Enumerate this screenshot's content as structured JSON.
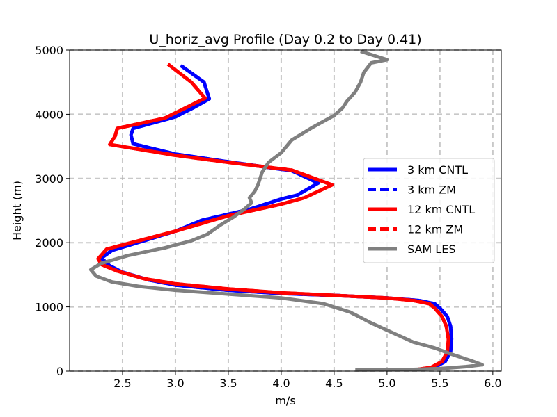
{
  "chart_data": {
    "type": "line",
    "title": "U_horiz_avg Profile (Day 0.2 to Day 0.41)",
    "xlabel": "m/s",
    "ylabel": "Height (m)",
    "xlim": [
      2.0,
      6.08
    ],
    "ylim": [
      0,
      5000
    ],
    "xticks": [
      2.5,
      3.0,
      3.5,
      4.0,
      4.5,
      5.0,
      5.5,
      6.0
    ],
    "xtick_labels": [
      "2.5",
      "3.0",
      "3.5",
      "4.0",
      "4.5",
      "5.0",
      "5.5",
      "6.0"
    ],
    "yticks": [
      0,
      1000,
      2000,
      3000,
      4000,
      5000
    ],
    "ytick_labels": [
      "0",
      "1000",
      "2000",
      "3000",
      "4000",
      "5000"
    ],
    "grid": true,
    "legend_position": "center-right",
    "series": [
      {
        "name": "3 km CNTL",
        "color": "#0000ff",
        "dash": "solid",
        "points": [
          [
            5.3,
            25
          ],
          [
            5.45,
            60
          ],
          [
            5.55,
            150
          ],
          [
            5.6,
            300
          ],
          [
            5.61,
            500
          ],
          [
            5.6,
            700
          ],
          [
            5.57,
            850
          ],
          [
            5.5,
            980
          ],
          [
            5.45,
            1050
          ],
          [
            5.3,
            1100
          ],
          [
            5.0,
            1140
          ],
          [
            4.5,
            1180
          ],
          [
            4.0,
            1210
          ],
          [
            3.5,
            1260
          ],
          [
            3.0,
            1340
          ],
          [
            2.75,
            1420
          ],
          [
            2.5,
            1540
          ],
          [
            2.38,
            1640
          ],
          [
            2.3,
            1760
          ],
          [
            2.4,
            1880
          ],
          [
            3.0,
            2180
          ],
          [
            3.25,
            2350
          ],
          [
            3.7,
            2520
          ],
          [
            4.0,
            2680
          ],
          [
            4.15,
            2740
          ],
          [
            4.35,
            2930
          ],
          [
            4.1,
            3120
          ],
          [
            3.5,
            3260
          ],
          [
            3.0,
            3380
          ],
          [
            2.6,
            3540
          ],
          [
            2.58,
            3680
          ],
          [
            2.6,
            3780
          ],
          [
            3.0,
            3960
          ],
          [
            3.18,
            4110
          ],
          [
            3.32,
            4240
          ],
          [
            3.27,
            4500
          ],
          [
            3.05,
            4760
          ]
        ]
      },
      {
        "name": "3 km ZM",
        "color": "#0000ff",
        "dash": "dashed",
        "points": [
          [
            5.3,
            25
          ],
          [
            5.45,
            60
          ],
          [
            5.55,
            150
          ],
          [
            5.6,
            300
          ],
          [
            5.61,
            500
          ],
          [
            5.6,
            700
          ],
          [
            5.57,
            850
          ],
          [
            5.5,
            980
          ],
          [
            5.45,
            1050
          ],
          [
            5.3,
            1100
          ],
          [
            5.0,
            1140
          ],
          [
            4.5,
            1180
          ],
          [
            4.0,
            1210
          ],
          [
            3.5,
            1260
          ],
          [
            3.0,
            1340
          ],
          [
            2.75,
            1420
          ],
          [
            2.5,
            1540
          ],
          [
            2.38,
            1640
          ],
          [
            2.3,
            1760
          ],
          [
            2.4,
            1880
          ],
          [
            3.0,
            2180
          ],
          [
            3.25,
            2350
          ],
          [
            3.7,
            2520
          ],
          [
            4.0,
            2680
          ],
          [
            4.15,
            2740
          ],
          [
            4.35,
            2930
          ],
          [
            4.1,
            3120
          ],
          [
            3.5,
            3260
          ],
          [
            3.0,
            3380
          ],
          [
            2.6,
            3540
          ],
          [
            2.58,
            3680
          ],
          [
            2.6,
            3780
          ],
          [
            3.0,
            3960
          ],
          [
            3.18,
            4110
          ],
          [
            3.32,
            4240
          ],
          [
            3.27,
            4500
          ],
          [
            3.05,
            4760
          ]
        ]
      },
      {
        "name": "12 km CNTL",
        "color": "#ff0000",
        "dash": "solid",
        "points": [
          [
            5.28,
            25
          ],
          [
            5.42,
            60
          ],
          [
            5.52,
            150
          ],
          [
            5.57,
            300
          ],
          [
            5.58,
            500
          ],
          [
            5.56,
            700
          ],
          [
            5.52,
            850
          ],
          [
            5.45,
            980
          ],
          [
            5.4,
            1050
          ],
          [
            5.25,
            1100
          ],
          [
            5.0,
            1140
          ],
          [
            4.5,
            1180
          ],
          [
            4.0,
            1220
          ],
          [
            3.5,
            1280
          ],
          [
            3.0,
            1360
          ],
          [
            2.7,
            1440
          ],
          [
            2.45,
            1560
          ],
          [
            2.3,
            1660
          ],
          [
            2.27,
            1750
          ],
          [
            2.35,
            1900
          ],
          [
            3.0,
            2180
          ],
          [
            3.5,
            2420
          ],
          [
            4.0,
            2600
          ],
          [
            4.22,
            2700
          ],
          [
            4.48,
            2900
          ],
          [
            4.1,
            3130
          ],
          [
            3.5,
            3250
          ],
          [
            3.0,
            3360
          ],
          [
            2.38,
            3530
          ],
          [
            2.43,
            3660
          ],
          [
            2.45,
            3780
          ],
          [
            2.9,
            3940
          ],
          [
            3.28,
            4250
          ],
          [
            3.15,
            4500
          ],
          [
            2.93,
            4780
          ]
        ]
      },
      {
        "name": "12 km ZM",
        "color": "#ff0000",
        "dash": "dashed",
        "points": [
          [
            5.28,
            25
          ],
          [
            5.42,
            60
          ],
          [
            5.52,
            150
          ],
          [
            5.57,
            300
          ],
          [
            5.58,
            500
          ],
          [
            5.56,
            700
          ],
          [
            5.52,
            850
          ],
          [
            5.45,
            980
          ],
          [
            5.4,
            1050
          ],
          [
            5.25,
            1100
          ],
          [
            5.0,
            1140
          ],
          [
            4.5,
            1180
          ],
          [
            4.0,
            1220
          ],
          [
            3.5,
            1280
          ],
          [
            3.0,
            1360
          ],
          [
            2.7,
            1440
          ],
          [
            2.45,
            1560
          ],
          [
            2.3,
            1660
          ],
          [
            2.27,
            1750
          ],
          [
            2.35,
            1900
          ],
          [
            3.0,
            2180
          ],
          [
            3.5,
            2420
          ],
          [
            4.0,
            2600
          ],
          [
            4.22,
            2700
          ],
          [
            4.48,
            2900
          ],
          [
            4.1,
            3130
          ],
          [
            3.5,
            3250
          ],
          [
            3.0,
            3360
          ],
          [
            2.38,
            3530
          ],
          [
            2.43,
            3660
          ],
          [
            2.45,
            3780
          ],
          [
            2.9,
            3940
          ],
          [
            3.28,
            4250
          ],
          [
            3.15,
            4500
          ],
          [
            2.93,
            4780
          ]
        ]
      },
      {
        "name": "SAM LES",
        "color": "#808080",
        "dash": "solid",
        "points": [
          [
            4.7,
            20
          ],
          [
            5.2,
            25
          ],
          [
            5.5,
            40
          ],
          [
            5.75,
            70
          ],
          [
            5.9,
            100
          ],
          [
            5.8,
            160
          ],
          [
            5.6,
            270
          ],
          [
            5.45,
            360
          ],
          [
            5.25,
            450
          ],
          [
            5.05,
            600
          ],
          [
            4.85,
            750
          ],
          [
            4.65,
            920
          ],
          [
            4.4,
            1050
          ],
          [
            4.0,
            1140
          ],
          [
            3.5,
            1200
          ],
          [
            3.0,
            1260
          ],
          [
            2.65,
            1320
          ],
          [
            2.4,
            1390
          ],
          [
            2.25,
            1480
          ],
          [
            2.2,
            1580
          ],
          [
            2.3,
            1680
          ],
          [
            2.55,
            1800
          ],
          [
            2.9,
            1920
          ],
          [
            3.15,
            2030
          ],
          [
            3.3,
            2130
          ],
          [
            3.42,
            2270
          ],
          [
            3.55,
            2400
          ],
          [
            3.65,
            2520
          ],
          [
            3.72,
            2620
          ],
          [
            3.7,
            2700
          ],
          [
            3.75,
            2800
          ],
          [
            3.78,
            2900
          ],
          [
            3.82,
            3100
          ],
          [
            3.88,
            3250
          ],
          [
            4.0,
            3400
          ],
          [
            4.1,
            3600
          ],
          [
            4.3,
            3800
          ],
          [
            4.5,
            3980
          ],
          [
            4.58,
            4100
          ],
          [
            4.62,
            4200
          ],
          [
            4.7,
            4350
          ],
          [
            4.75,
            4500
          ],
          [
            4.78,
            4650
          ],
          [
            4.85,
            4800
          ],
          [
            5.0,
            4850
          ],
          [
            4.75,
            4980
          ]
        ]
      }
    ]
  }
}
